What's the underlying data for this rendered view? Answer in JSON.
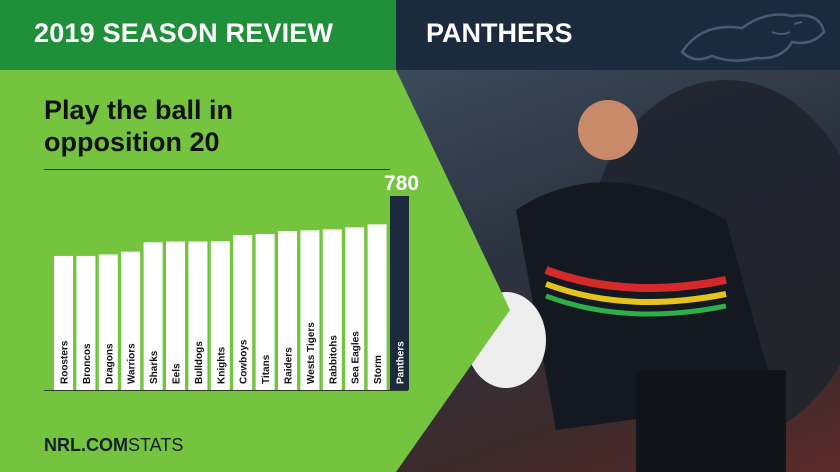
{
  "header": {
    "title": "2019 SEASON REVIEW",
    "team": "PANTHERS"
  },
  "logo_icon": "panther-icon",
  "chart_data": {
    "type": "bar",
    "title": "Play the ball in opposition 20",
    "categories": [
      "Roosters",
      "Broncos",
      "Dragons",
      "Warriors",
      "Sharks",
      "Eels",
      "Bulldogs",
      "Knights",
      "Cowboys",
      "Titans",
      "Raiders",
      "Wests Tigers",
      "Rabbitohs",
      "Sea Eagles",
      "Storm",
      "Panthers"
    ],
    "values": [
      539,
      539,
      545,
      556,
      594,
      597,
      597,
      598,
      623,
      627,
      639,
      642,
      646,
      654,
      666,
      780
    ],
    "data_labels": [
      "",
      "",
      "",
      "",
      "",
      "",
      "",
      "",
      "",
      "",
      "",
      "",
      "",
      "",
      "",
      "780"
    ],
    "highlight": "Panthers",
    "highlight_color": "#1c2a3e",
    "bar_color": "#ffffff",
    "ylim": [
      0,
      780
    ],
    "grid": false
  },
  "footer": {
    "brand": "NRL.COM",
    "suffix": "STATS"
  },
  "colors": {
    "header_green": "#1f8f3a",
    "panel_green": "#74c43f",
    "navy": "#1c2a3e"
  }
}
